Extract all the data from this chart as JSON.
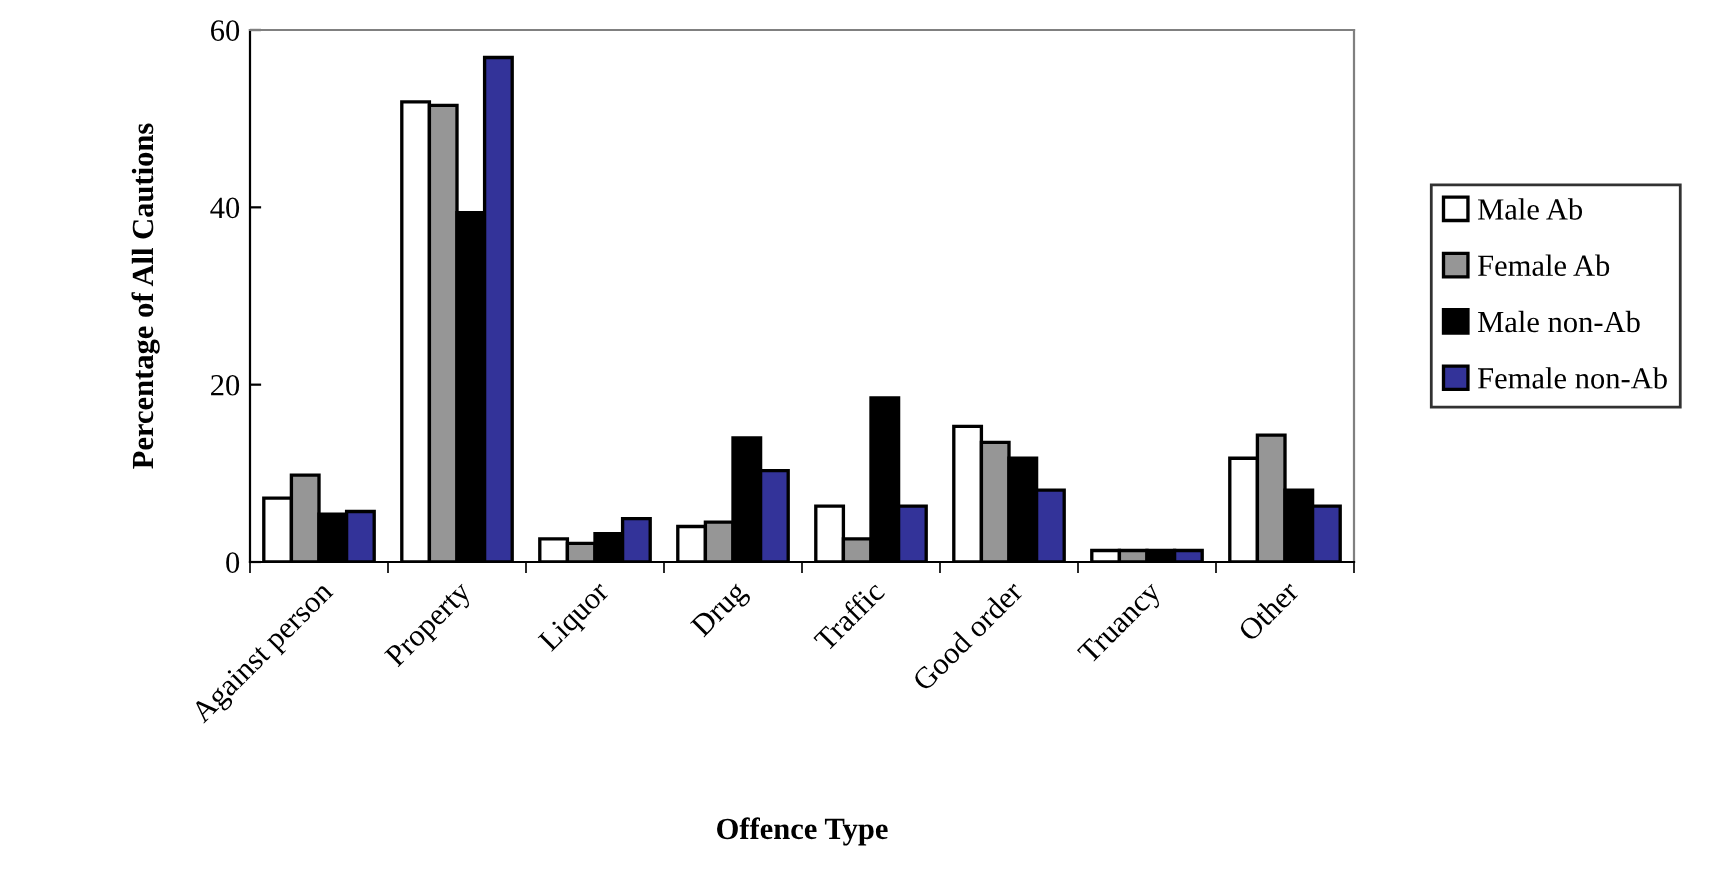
{
  "chart_data": {
    "type": "bar",
    "xlabel": "Offence Type",
    "ylabel": "Percentage of All Cautions",
    "categories": [
      "Against person",
      "Property",
      "Liquor",
      "Drug",
      "Traffic",
      "Good order",
      "Truancy",
      "Other"
    ],
    "series": [
      {
        "name": "Male Ab",
        "color": "#ffffff",
        "values": [
          7.2,
          51.9,
          2.6,
          4.0,
          6.3,
          15.3,
          1.3,
          11.7
        ]
      },
      {
        "name": "Female Ab",
        "color": "#969696",
        "values": [
          9.8,
          51.5,
          2.1,
          4.5,
          2.6,
          13.5,
          1.3,
          14.3
        ]
      },
      {
        "name": "Male non-Ab",
        "color": "#000000",
        "values": [
          5.4,
          39.4,
          3.2,
          14.0,
          18.5,
          11.7,
          1.3,
          8.1
        ]
      },
      {
        "name": "Female non-Ab",
        "color": "#333399",
        "values": [
          5.7,
          56.9,
          4.9,
          10.3,
          6.3,
          8.1,
          1.3,
          6.3
        ]
      }
    ],
    "ylim": [
      0,
      60
    ],
    "yticks": [
      0,
      20,
      40,
      60
    ],
    "grid": false,
    "legend": "right"
  }
}
